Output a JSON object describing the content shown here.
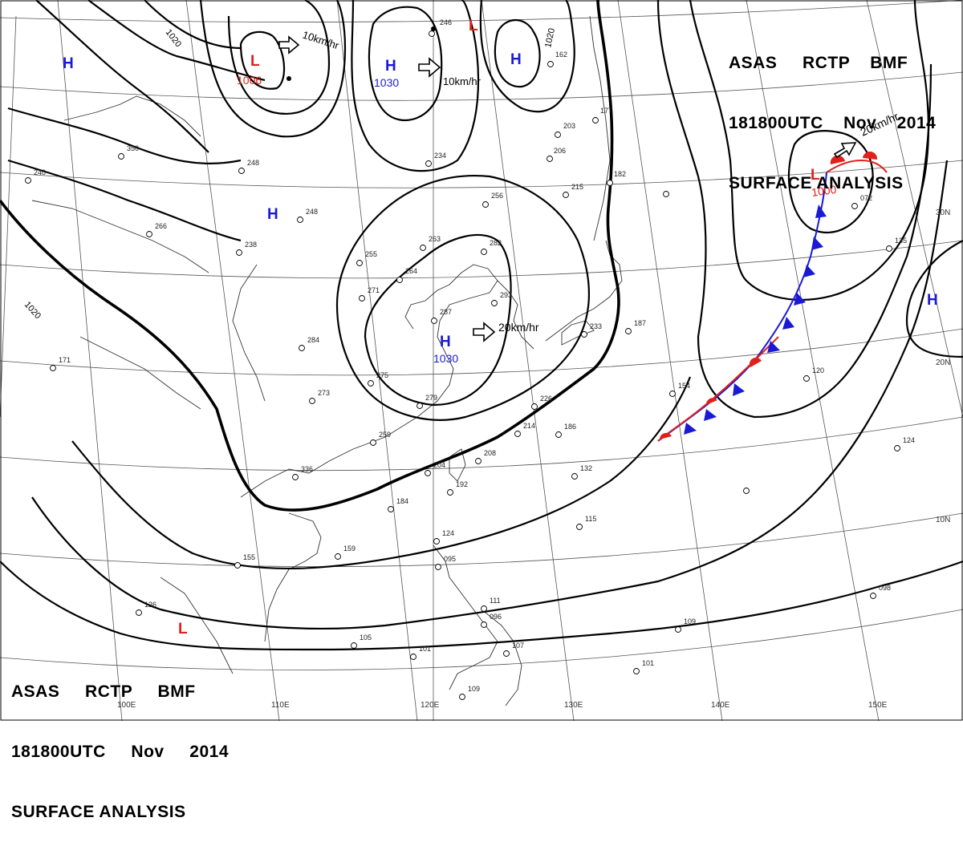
{
  "header_top": {
    "line1": [
      "ASAS",
      "RCTP",
      "BMF"
    ],
    "line2": [
      "181800UTC",
      "Nov",
      "2014"
    ],
    "line3": "SURFACE ANALYSIS"
  },
  "header_bottom": {
    "line1": [
      "ASAS",
      "RCTP",
      "BMF"
    ],
    "line2": [
      "181800UTC",
      "Nov",
      "2014"
    ],
    "line3": "SURFACE ANALYSIS"
  },
  "lon_labels": [
    "100E",
    "110E",
    "120E",
    "130E",
    "140E",
    "150E"
  ],
  "lat_labels": [
    "30N",
    "20N",
    "10N"
  ],
  "pressure_centers": [
    {
      "type": "H",
      "value": "",
      "color": "#1a1ad6"
    },
    {
      "type": "L",
      "value": "1006",
      "color": "#e0201a"
    },
    {
      "type": "H",
      "value": "1030",
      "color": "#1a1ad6"
    },
    {
      "type": "L",
      "value": "",
      "color": "#e0201a"
    },
    {
      "type": "H",
      "value": "",
      "color": "#1a1ad6"
    },
    {
      "type": "H",
      "value": "",
      "color": "#1a1ad6"
    },
    {
      "type": "H",
      "value": "1030",
      "color": "#1a1ad6"
    },
    {
      "type": "L",
      "value": "1000",
      "color": "#e0201a"
    },
    {
      "type": "H",
      "value": "",
      "color": "#1a1ad6"
    },
    {
      "type": "L",
      "value": "",
      "color": "#e0201a"
    }
  ],
  "movement_labels": [
    "10km/hr",
    "10km/hr",
    "20km/hr",
    "20km/hr"
  ],
  "isobar_labels": [
    "1020",
    "1020",
    "1020"
  ],
  "station_values": [
    "246",
    "162",
    "177",
    "203",
    "206",
    "182",
    "215",
    "256",
    "263",
    "282",
    "287",
    "293",
    "255",
    "264",
    "271",
    "284",
    "248",
    "238",
    "266",
    "240",
    "350",
    "248",
    "234",
    "275",
    "273",
    "279",
    "259",
    "336",
    "184",
    "159",
    "155",
    "226",
    "186",
    "214",
    "208",
    "204",
    "192",
    "132",
    "115",
    "124",
    "095",
    "111",
    "096",
    "107",
    "101",
    "105",
    "109",
    "126",
    "154",
    "120",
    "124",
    "135",
    "072",
    "187",
    "233",
    "098",
    "109",
    "101",
    "171"
  ],
  "colors": {
    "high": "#1a1ad6",
    "low": "#e0201a",
    "warm_front": "#e0201a",
    "cold_front": "#1a1ad6"
  }
}
